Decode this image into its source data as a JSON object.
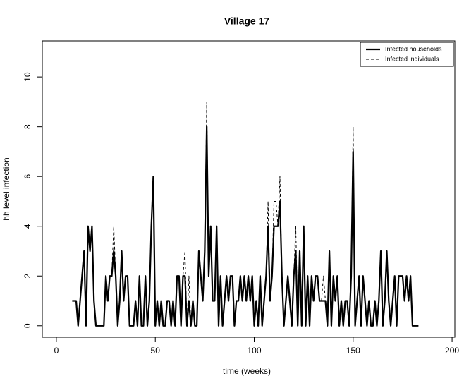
{
  "chart_data": {
    "type": "line",
    "title": "Village  17",
    "x_label": "time (weeks)",
    "y_label": "hh level infection",
    "x": [
      8,
      9,
      10,
      11,
      12,
      13,
      14,
      15,
      16,
      17,
      18,
      19,
      20,
      21,
      22,
      23,
      24,
      25,
      26,
      27,
      28,
      29,
      30,
      31,
      32,
      33,
      34,
      35,
      36,
      37,
      38,
      39,
      40,
      41,
      42,
      43,
      44,
      45,
      46,
      47,
      48,
      49,
      50,
      51,
      52,
      53,
      54,
      55,
      56,
      57,
      58,
      59,
      60,
      61,
      62,
      63,
      64,
      65,
      66,
      67,
      68,
      69,
      70,
      71,
      72,
      73,
      74,
      75,
      76,
      77,
      78,
      79,
      80,
      81,
      82,
      83,
      84,
      85,
      86,
      87,
      88,
      89,
      90,
      91,
      92,
      93,
      94,
      95,
      96,
      97,
      98,
      99,
      100,
      101,
      102,
      103,
      104,
      105,
      106,
      107,
      108,
      109,
      110,
      111,
      112,
      113,
      114,
      115,
      116,
      117,
      118,
      119,
      120,
      121,
      122,
      123,
      124,
      125,
      126,
      127,
      128,
      129,
      130,
      131,
      132,
      133,
      134,
      135,
      136,
      137,
      138,
      139,
      140,
      141,
      142,
      143,
      144,
      145,
      146,
      147,
      148,
      149,
      150,
      151,
      152,
      153,
      154,
      155,
      156,
      157,
      158,
      159,
      160,
      161,
      162,
      163,
      164,
      165,
      166,
      167,
      168,
      169,
      170,
      171,
      172,
      173,
      174,
      175,
      176,
      177,
      178,
      179,
      180,
      181,
      182,
      183
    ],
    "series": [
      {
        "name": "Infected households",
        "color": "#000000",
        "style": "solid",
        "values": [
          1,
          1,
          1,
          0,
          1,
          2,
          3,
          0,
          4,
          3,
          4,
          1,
          0,
          0,
          0,
          0,
          0,
          2,
          1,
          2,
          2,
          3,
          2,
          0,
          1,
          3,
          1,
          2,
          2,
          0,
          0,
          0,
          1,
          0,
          2,
          0,
          0,
          2,
          0,
          1,
          4,
          6,
          0,
          1,
          0,
          1,
          0,
          0,
          1,
          1,
          0,
          1,
          0,
          2,
          2,
          0,
          2,
          2,
          0,
          1,
          0,
          1,
          0,
          0,
          3,
          2,
          1,
          3,
          8,
          2,
          4,
          1,
          1,
          4,
          0,
          2,
          0,
          1,
          2,
          1,
          2,
          2,
          0,
          1,
          1,
          2,
          1,
          2,
          1,
          2,
          1,
          2,
          0,
          1,
          0,
          2,
          0,
          1,
          2,
          4,
          1,
          2,
          4,
          4,
          4,
          5,
          2,
          0,
          1,
          2,
          1,
          0,
          2,
          3,
          0,
          3,
          0,
          4,
          0,
          2,
          0,
          2,
          1,
          2,
          2,
          1,
          1,
          1,
          1,
          0,
          3,
          0,
          2,
          1,
          2,
          0,
          1,
          0,
          1,
          1,
          0,
          2,
          7,
          0,
          1,
          2,
          0,
          2,
          1,
          0,
          1,
          0,
          0,
          1,
          0,
          1,
          3,
          0,
          1,
          3,
          1,
          0,
          1,
          2,
          0,
          2,
          2,
          2,
          1,
          2,
          1,
          2,
          0,
          0,
          0,
          0
        ]
      },
      {
        "name": "Infected individuals",
        "color": "#000000",
        "style": "dashed",
        "values": [
          1,
          1,
          1,
          0,
          1,
          2,
          3,
          0,
          4,
          3,
          4,
          1,
          0,
          0,
          0,
          0,
          0,
          2,
          1,
          2,
          2,
          4,
          2,
          0,
          1,
          3,
          1,
          2,
          2,
          0,
          0,
          0,
          1,
          0,
          2,
          0,
          0,
          2,
          0,
          1,
          4,
          6,
          0,
          1,
          0,
          1,
          0,
          0,
          1,
          1,
          0,
          1,
          0,
          2,
          2,
          0,
          2,
          3,
          0,
          2,
          0,
          1,
          0,
          0,
          3,
          2,
          1,
          3,
          9,
          2,
          4,
          1,
          1,
          4,
          0,
          2,
          0,
          1,
          2,
          1,
          2,
          2,
          0,
          1,
          1,
          2,
          1,
          2,
          1,
          2,
          1,
          2,
          0,
          1,
          0,
          2,
          0,
          1,
          2,
          5,
          1,
          2,
          5,
          5,
          4,
          6,
          2,
          0,
          1,
          2,
          1,
          0,
          2,
          4,
          0,
          3,
          0,
          4,
          0,
          2,
          0,
          2,
          1,
          2,
          2,
          1,
          1,
          2,
          1,
          0,
          3,
          0,
          2,
          1,
          2,
          0,
          1,
          0,
          1,
          1,
          0,
          2,
          8,
          0,
          1,
          2,
          0,
          2,
          1,
          0,
          1,
          0,
          0,
          1,
          0,
          1,
          3,
          0,
          1,
          3,
          1,
          0,
          1,
          2,
          0,
          2,
          2,
          2,
          1,
          2,
          1,
          2,
          0,
          0,
          0,
          0
        ]
      }
    ],
    "xlim": [
      -7.1,
      201.4
    ],
    "ylim": [
      -0.46,
      11.45
    ],
    "xticks": [
      0,
      50,
      100,
      150,
      200
    ],
    "yticks": [
      0,
      2,
      4,
      6,
      8,
      10
    ],
    "legend": "top-right"
  }
}
